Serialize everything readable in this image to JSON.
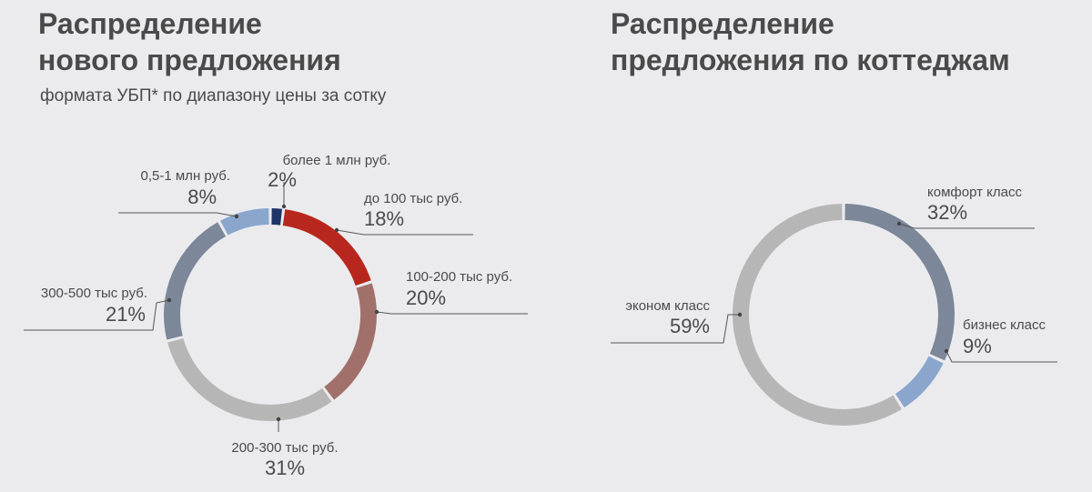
{
  "colors": {
    "background": "#ebebee",
    "dark_navy": "#1f3566",
    "red": "#b8271d",
    "muted_red": "#a2706a",
    "light_gray": "#b6b6b6",
    "slate": "#7c8799",
    "light_blue": "#8aa6cd"
  },
  "left": {
    "title": "Распределение\nнового предложения",
    "subtitle": "формата УБП* по диапазону цены за сотку"
  },
  "right": {
    "title": "Распределение\nпредложения по коттеджам"
  },
  "chart_data": [
    {
      "type": "pie",
      "subtype": "donut",
      "slices": [
        {
          "label": "более 1 млн руб.",
          "value": 2,
          "value_label": "2%",
          "color": "#1f3566"
        },
        {
          "label": "до 100 тыс руб.",
          "value": 18,
          "value_label": "18%",
          "color": "#b8271d"
        },
        {
          "label": "100-200 тыс руб.",
          "value": 20,
          "value_label": "20%",
          "color": "#a2706a"
        },
        {
          "label": "200-300 тыс руб.",
          "value": 31,
          "value_label": "31%",
          "color": "#b6b6b6"
        },
        {
          "label": "300-500 тыс руб.",
          "value": 21,
          "value_label": "21%",
          "color": "#7c8799"
        },
        {
          "label": "0,5-1 млн руб.",
          "value": 8,
          "value_label": "8%",
          "color": "#8aa6cd"
        }
      ]
    },
    {
      "type": "pie",
      "subtype": "donut",
      "slices": [
        {
          "label": "комфорт класс",
          "value": 32,
          "value_label": "32%",
          "color": "#7c8799"
        },
        {
          "label": "бизнес класс",
          "value": 9,
          "value_label": "9%",
          "color": "#8aa6cd"
        },
        {
          "label": "эконом класс",
          "value": 59,
          "value_label": "59%",
          "color": "#b6b6b6"
        }
      ]
    }
  ]
}
